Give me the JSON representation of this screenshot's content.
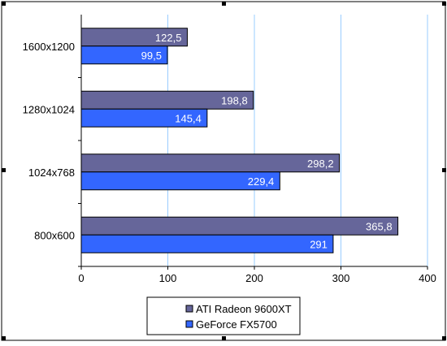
{
  "chart_data": {
    "type": "bar",
    "orientation": "horizontal",
    "categories": [
      "1600x1200",
      "1280x1024",
      "1024x768",
      "800x600"
    ],
    "series": [
      {
        "name": "ATI Radeon 9600XT",
        "labels": [
          "122,5",
          "198,8",
          "298,2",
          "365,8"
        ],
        "values": [
          122.5,
          198.8,
          298.2,
          365.8
        ],
        "color": "#66669a"
      },
      {
        "name": "GeForce FX5700",
        "labels": [
          "99,5",
          "145,4",
          "229,4",
          "291"
        ],
        "values": [
          99.5,
          145.4,
          229.4,
          291
        ],
        "color": "#3366ff"
      }
    ],
    "xticks": [
      "0",
      "100",
      "200",
      "300",
      "400"
    ],
    "xlim": [
      0,
      400
    ],
    "grid": "vertical",
    "gridColor": "#99ccff",
    "legend": "bottom"
  }
}
